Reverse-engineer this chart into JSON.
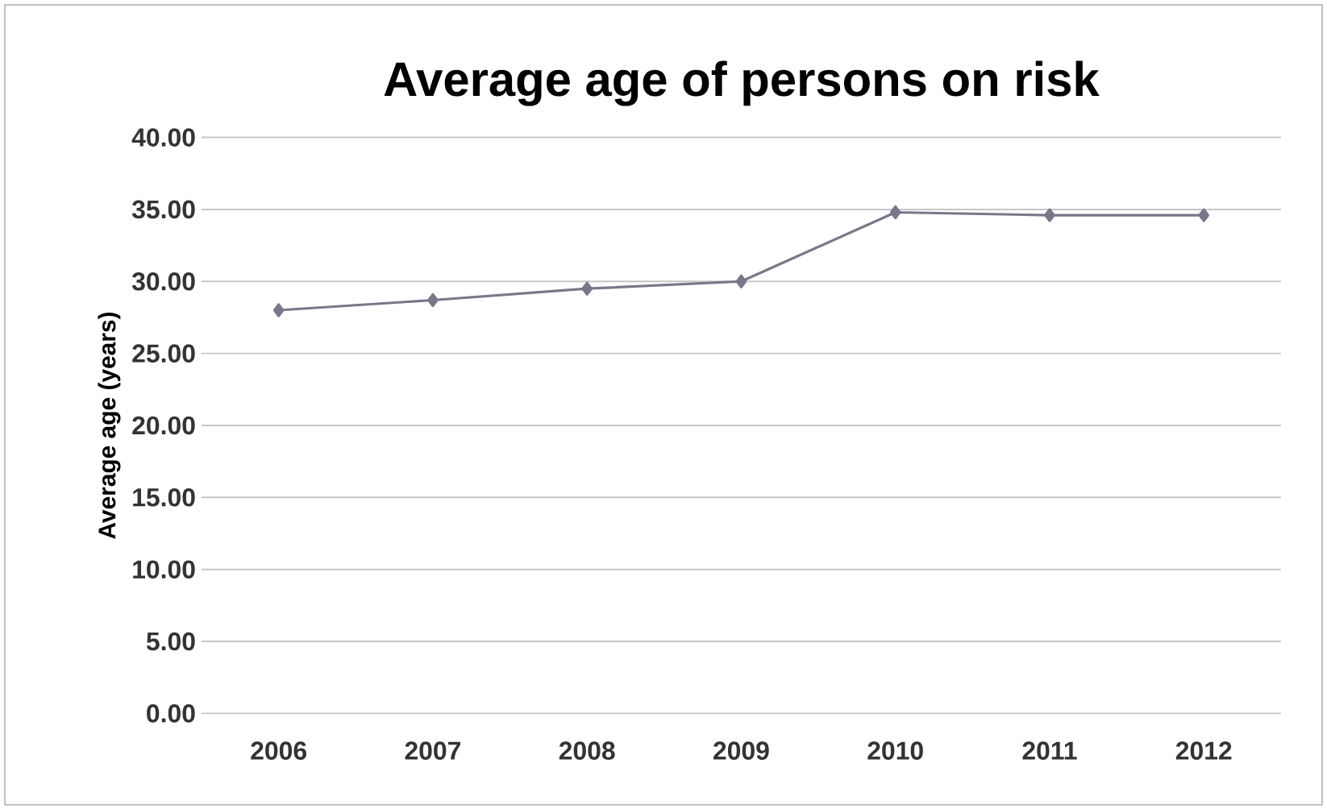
{
  "chart_data": {
    "type": "line",
    "title": "Average age of persons on risk",
    "ylabel": "Average age (years)",
    "categories": [
      "2006",
      "2007",
      "2008",
      "2009",
      "2010",
      "2011",
      "2012"
    ],
    "series": [
      {
        "color": "#77788a",
        "values": [
          28.0,
          28.7,
          29.5,
          30.0,
          34.8,
          34.6,
          34.6
        ]
      }
    ],
    "ylim": [
      0,
      40
    ],
    "yticks": [
      {
        "value": 0,
        "label": "0.00"
      },
      {
        "value": 5,
        "label": "5.00"
      },
      {
        "value": 10,
        "label": "10.00"
      },
      {
        "value": 15,
        "label": "15.00"
      },
      {
        "value": 20,
        "label": "20.00"
      },
      {
        "value": 25,
        "label": "25.00"
      },
      {
        "value": 30,
        "label": "30.00"
      },
      {
        "value": 35,
        "label": "35.00"
      },
      {
        "value": 40,
        "label": "40.00"
      }
    ],
    "grid": "y",
    "marker": "diamond"
  }
}
